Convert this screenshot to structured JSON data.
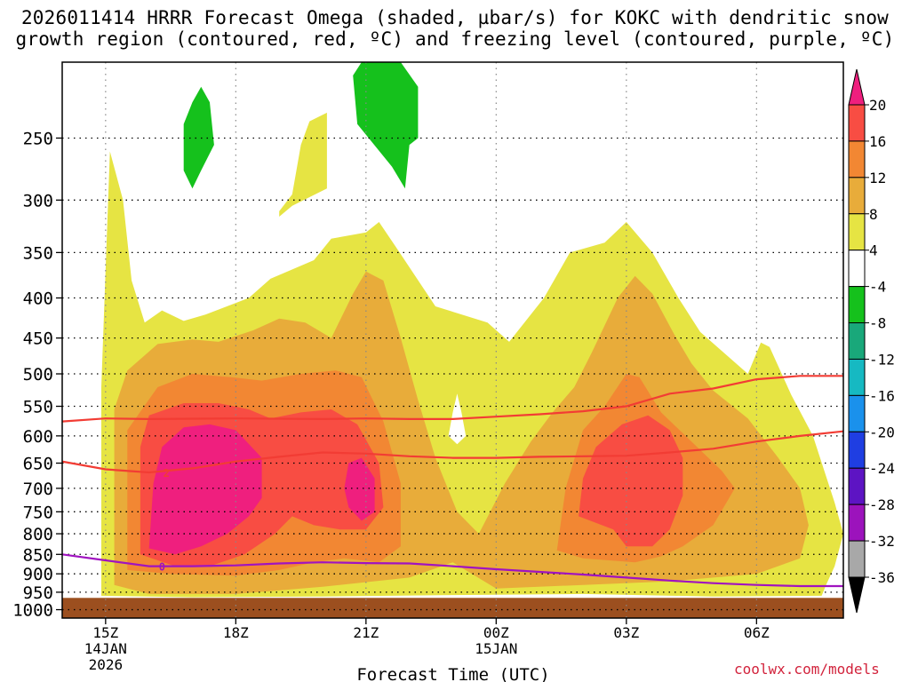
{
  "title": {
    "line1": "2026011414 HRRR Forecast Omega (shaded, µbar/s) for KOKC with dendritic snow",
    "line2": "growth region (contoured, red, ºC) and freezing level (contoured, purple, ºC)"
  },
  "credit": "coolwx.com/models",
  "chart_data": {
    "type": "heatmap",
    "xlabel": "Forecast Time (UTC)",
    "ylabel": "",
    "x_ticks": [
      {
        "hour": 15,
        "label": "15Z",
        "sub1": "14JAN",
        "sub2": "2026"
      },
      {
        "hour": 18,
        "label": "18Z",
        "sub1": "",
        "sub2": ""
      },
      {
        "hour": 21,
        "label": "21Z",
        "sub1": "",
        "sub2": ""
      },
      {
        "hour": 24,
        "label": "00Z",
        "sub1": "15JAN",
        "sub2": ""
      },
      {
        "hour": 27,
        "label": "03Z",
        "sub1": "",
        "sub2": ""
      },
      {
        "hour": 30,
        "label": "06Z",
        "sub1": "",
        "sub2": ""
      }
    ],
    "xlim_hours": [
      14,
      32
    ],
    "y_ticks_hpa": [
      250,
      300,
      350,
      400,
      450,
      500,
      550,
      600,
      650,
      700,
      750,
      800,
      850,
      900,
      950,
      1000
    ],
    "ylim_hpa": [
      200,
      1025
    ],
    "y_scale": "log-pressure",
    "surface_pressure_hpa": 966,
    "colorbar": {
      "labels": [
        "20",
        "16",
        "12",
        "8",
        "4",
        "-4",
        "-8",
        "-12",
        "-16",
        "-20",
        "-24",
        "-28",
        "-32",
        "-36"
      ],
      "colors": [
        "#ef1f7e",
        "#f84d43",
        "#f28733",
        "#e8ac3a",
        "#e6e443",
        "#ffffff",
        "#15c11c",
        "#19a87a",
        "#16b9c2",
        "#1a91ec",
        "#1f3ee2",
        "#5d14c3",
        "#9c13bc",
        "#a8a8a8",
        "#000000"
      ]
    },
    "omega_regions": [
      {
        "level": "4",
        "color": "#e6e443",
        "pts": [
          [
            14.9,
            960
          ],
          [
            14.9,
            520
          ],
          [
            15.1,
            260
          ],
          [
            15.4,
            300
          ],
          [
            15.6,
            380
          ],
          [
            15.9,
            430
          ],
          [
            16.3,
            415
          ],
          [
            16.8,
            428
          ],
          [
            17.3,
            420
          ],
          [
            18.3,
            400
          ],
          [
            18.8,
            378
          ],
          [
            19.8,
            358
          ],
          [
            20.2,
            336
          ],
          [
            21.0,
            330
          ],
          [
            21.3,
            320
          ],
          [
            21.7,
            345
          ],
          [
            22.6,
            410
          ],
          [
            23.8,
            430
          ],
          [
            24.3,
            455
          ],
          [
            25.1,
            400
          ],
          [
            25.7,
            350
          ],
          [
            26.5,
            340
          ],
          [
            27.0,
            320
          ],
          [
            27.6,
            350
          ],
          [
            28.2,
            400
          ],
          [
            28.7,
            442
          ],
          [
            29.8,
            500
          ],
          [
            30.1,
            456
          ],
          [
            30.3,
            462
          ],
          [
            30.8,
            532
          ],
          [
            31.3,
            600
          ],
          [
            31.8,
            730
          ],
          [
            32.0,
            800
          ],
          [
            31.8,
            880
          ],
          [
            31.6,
            930
          ],
          [
            31.5,
            960
          ],
          [
            29.0,
            962
          ],
          [
            26.0,
            955
          ],
          [
            23.0,
            958
          ],
          [
            20.0,
            962
          ],
          [
            17.0,
            964
          ]
        ]
      },
      {
        "level": "4",
        "color": "#e6e443",
        "pts": [
          [
            19.0,
            310
          ],
          [
            19.3,
            295
          ],
          [
            19.5,
            255
          ],
          [
            19.7,
            238
          ],
          [
            20.1,
            232
          ],
          [
            20.1,
            290
          ],
          [
            19.3,
            305
          ],
          [
            19.0,
            315
          ]
        ]
      },
      {
        "level": "8",
        "color": "#e8ac3a",
        "pts": [
          [
            15.2,
            930
          ],
          [
            15.2,
            555
          ],
          [
            15.5,
            495
          ],
          [
            16.2,
            458
          ],
          [
            17.0,
            452
          ],
          [
            17.6,
            455
          ],
          [
            18.4,
            440
          ],
          [
            19.0,
            425
          ],
          [
            19.6,
            430
          ],
          [
            20.2,
            450
          ],
          [
            20.7,
            395
          ],
          [
            21.0,
            370
          ],
          [
            21.4,
            380
          ],
          [
            21.8,
            450
          ],
          [
            22.2,
            540
          ],
          [
            22.6,
            640
          ],
          [
            23.1,
            750
          ],
          [
            23.6,
            800
          ],
          [
            24.2,
            690
          ],
          [
            24.8,
            610
          ],
          [
            25.3,
            560
          ],
          [
            25.8,
            520
          ],
          [
            26.2,
            470
          ],
          [
            26.8,
            400
          ],
          [
            27.2,
            375
          ],
          [
            27.6,
            395
          ],
          [
            28.1,
            445
          ],
          [
            28.5,
            485
          ],
          [
            29.0,
            525
          ],
          [
            29.8,
            570
          ],
          [
            30.5,
            640
          ],
          [
            31.0,
            700
          ],
          [
            31.2,
            780
          ],
          [
            31.0,
            860
          ],
          [
            30.0,
            900
          ],
          [
            28.0,
            920
          ],
          [
            26.0,
            930
          ],
          [
            24.0,
            940
          ],
          [
            23.0,
            870
          ],
          [
            22.0,
            910
          ],
          [
            20.0,
            935
          ],
          [
            18.0,
            955
          ],
          [
            16.0,
            955
          ]
        ]
      },
      {
        "level": "12",
        "color": "#f28733",
        "pts": [
          [
            15.5,
            890
          ],
          [
            15.5,
            590
          ],
          [
            16.2,
            520
          ],
          [
            17.0,
            500
          ],
          [
            17.9,
            505
          ],
          [
            18.6,
            510
          ],
          [
            19.5,
            500
          ],
          [
            20.3,
            495
          ],
          [
            20.9,
            505
          ],
          [
            21.4,
            575
          ],
          [
            21.8,
            690
          ],
          [
            21.8,
            830
          ],
          [
            21.3,
            870
          ],
          [
            20.5,
            860
          ],
          [
            19.8,
            870
          ],
          [
            19.0,
            890
          ],
          [
            18.0,
            905
          ],
          [
            16.5,
            900
          ]
        ]
      },
      {
        "level": "12",
        "color": "#f28733",
        "pts": [
          [
            25.4,
            840
          ],
          [
            25.6,
            700
          ],
          [
            26.0,
            590
          ],
          [
            26.5,
            550
          ],
          [
            27.0,
            500
          ],
          [
            27.3,
            505
          ],
          [
            27.8,
            560
          ],
          [
            28.5,
            610
          ],
          [
            29.2,
            665
          ],
          [
            29.5,
            700
          ],
          [
            29.0,
            780
          ],
          [
            28.3,
            830
          ],
          [
            27.8,
            855
          ],
          [
            27.2,
            870
          ],
          [
            26.6,
            865
          ],
          [
            26.0,
            860
          ]
        ]
      },
      {
        "level": "16",
        "color": "#f84d43",
        "pts": [
          [
            15.8,
            850
          ],
          [
            15.8,
            620
          ],
          [
            16.0,
            565
          ],
          [
            16.8,
            545
          ],
          [
            17.6,
            545
          ],
          [
            18.3,
            555
          ],
          [
            18.8,
            570
          ],
          [
            19.5,
            560
          ],
          [
            20.2,
            555
          ],
          [
            20.8,
            580
          ],
          [
            21.3,
            650
          ],
          [
            21.4,
            740
          ],
          [
            21.0,
            790
          ],
          [
            20.4,
            790
          ],
          [
            19.8,
            780
          ],
          [
            19.3,
            760
          ],
          [
            18.9,
            800
          ],
          [
            18.2,
            850
          ],
          [
            17.4,
            880
          ],
          [
            16.6,
            880
          ]
        ]
      },
      {
        "level": "16",
        "color": "#f84d43",
        "pts": [
          [
            25.9,
            760
          ],
          [
            26.0,
            680
          ],
          [
            26.3,
            620
          ],
          [
            26.9,
            580
          ],
          [
            27.5,
            565
          ],
          [
            28.0,
            590
          ],
          [
            28.3,
            640
          ],
          [
            28.3,
            715
          ],
          [
            28.0,
            790
          ],
          [
            27.6,
            830
          ],
          [
            27.0,
            830
          ],
          [
            26.7,
            790
          ]
        ]
      },
      {
        "level": "20",
        "color": "#ef1f7e",
        "pts": [
          [
            16.0,
            835
          ],
          [
            16.1,
            690
          ],
          [
            16.3,
            620
          ],
          [
            16.8,
            585
          ],
          [
            17.4,
            580
          ],
          [
            18.0,
            590
          ],
          [
            18.6,
            640
          ],
          [
            18.6,
            720
          ],
          [
            18.3,
            760
          ],
          [
            17.8,
            800
          ],
          [
            17.2,
            830
          ],
          [
            16.6,
            850
          ]
        ]
      },
      {
        "level": "20",
        "color": "#ef1f7e",
        "pts": [
          [
            20.5,
            700
          ],
          [
            20.6,
            650
          ],
          [
            20.9,
            640
          ],
          [
            21.2,
            680
          ],
          [
            21.2,
            750
          ],
          [
            20.9,
            770
          ],
          [
            20.6,
            740
          ]
        ]
      },
      {
        "level": "4",
        "color": "#ffffff",
        "pts": [
          [
            22.9,
            600
          ],
          [
            23.0,
            560
          ],
          [
            23.1,
            530
          ],
          [
            23.2,
            560
          ],
          [
            23.3,
            600
          ],
          [
            23.1,
            615
          ]
        ]
      },
      {
        "level": "-8",
        "color": "#15c11c",
        "pts": [
          [
            16.8,
            275
          ],
          [
            16.8,
            240
          ],
          [
            17.0,
            225
          ],
          [
            17.2,
            215
          ],
          [
            17.4,
            225
          ],
          [
            17.5,
            255
          ],
          [
            17.2,
            275
          ],
          [
            17.0,
            290
          ]
        ]
      },
      {
        "level": "-8",
        "color": "#15c11c",
        "pts": [
          [
            20.7,
            208
          ],
          [
            20.9,
            200
          ],
          [
            21.8,
            200
          ],
          [
            22.2,
            215
          ],
          [
            22.2,
            250
          ],
          [
            22.0,
            255
          ],
          [
            21.9,
            290
          ],
          [
            21.6,
            272
          ],
          [
            20.8,
            240
          ]
        ]
      }
    ],
    "contours": [
      {
        "name": "-12",
        "color": "#f23c34",
        "label": "-12",
        "points": [
          [
            14,
            575
          ],
          [
            15,
            570
          ],
          [
            16,
            571
          ],
          [
            18,
            570
          ],
          [
            20,
            571
          ],
          [
            21,
            570
          ],
          [
            22,
            571
          ],
          [
            23,
            571
          ],
          [
            24,
            567
          ],
          [
            25,
            563
          ],
          [
            26,
            558
          ],
          [
            27,
            550
          ],
          [
            28,
            530
          ],
          [
            29,
            522
          ],
          [
            30,
            508
          ],
          [
            31,
            503
          ],
          [
            32,
            503
          ]
        ]
      },
      {
        "name": "-12",
        "color": "#f23c34",
        "label": "-12",
        "points": [
          [
            14,
            647
          ],
          [
            15,
            662
          ],
          [
            16,
            668
          ],
          [
            17,
            660
          ],
          [
            18,
            647
          ],
          [
            19,
            638
          ],
          [
            20,
            630
          ],
          [
            21,
            632
          ],
          [
            22,
            637
          ],
          [
            23,
            640
          ],
          [
            24,
            640
          ],
          [
            25,
            638
          ],
          [
            26,
            637
          ],
          [
            27,
            636
          ],
          [
            28,
            630
          ],
          [
            29,
            623
          ],
          [
            30,
            610
          ],
          [
            31,
            600
          ],
          [
            32,
            592
          ]
        ]
      },
      {
        "name": "0",
        "color": "#a013c0",
        "label": "0",
        "points": [
          [
            14,
            850
          ],
          [
            15,
            865
          ],
          [
            16,
            880
          ],
          [
            17,
            880
          ],
          [
            18,
            878
          ],
          [
            19,
            873
          ],
          [
            20,
            870
          ],
          [
            21,
            872
          ],
          [
            22,
            873
          ],
          [
            23,
            880
          ],
          [
            24,
            888
          ],
          [
            25,
            895
          ],
          [
            26,
            902
          ],
          [
            27,
            910
          ],
          [
            28,
            918
          ],
          [
            29,
            925
          ],
          [
            30,
            930
          ],
          [
            31,
            933
          ],
          [
            32,
            933
          ]
        ]
      }
    ]
  }
}
